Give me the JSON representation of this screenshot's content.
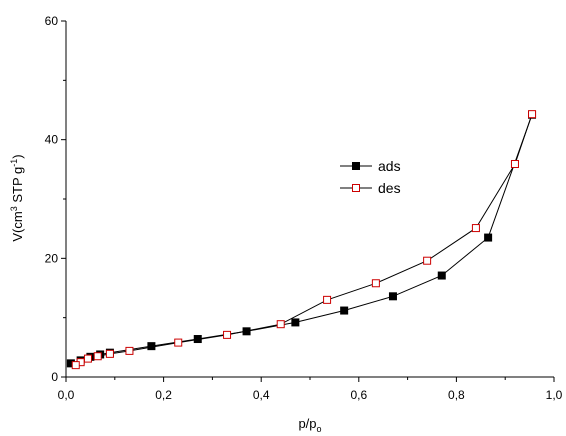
{
  "chart_data": {
    "type": "scatter",
    "xlabel": "p/p",
    "xlabel_sub": "o",
    "ylabel": {
      "prefix": "V(cm",
      "sup1": "3",
      "middle": " STP g",
      "sup2": "-1",
      "suffix": ")"
    },
    "xlim": [
      0,
      1.0
    ],
    "ylim": [
      0,
      60
    ],
    "x_ticks": [
      0.0,
      0.2,
      0.4,
      0.6,
      0.8,
      1.0
    ],
    "x_tick_labels": [
      "0,0",
      "0,2",
      "0,4",
      "0,6",
      "0,8",
      "1,0"
    ],
    "y_ticks": [
      0,
      20,
      40,
      60
    ],
    "y_tick_labels": [
      "0",
      "20",
      "40",
      "60"
    ],
    "grid": false,
    "legend_position": "center-right",
    "series": [
      {
        "name": "ads",
        "marker": "filled-square",
        "color": "#000000",
        "x": [
          0.01,
          0.03,
          0.05,
          0.07,
          0.09,
          0.175,
          0.27,
          0.37,
          0.47,
          0.57,
          0.67,
          0.77,
          0.865,
          0.955
        ],
        "y": [
          2.3,
          2.8,
          3.4,
          3.8,
          4.1,
          5.2,
          6.4,
          7.7,
          9.2,
          11.2,
          13.6,
          17.1,
          23.5,
          44.2
        ]
      },
      {
        "name": "des",
        "marker": "open-square",
        "color": "#cc0000",
        "x": [
          0.955,
          0.92,
          0.84,
          0.74,
          0.635,
          0.535,
          0.44,
          0.33,
          0.23,
          0.13,
          0.09,
          0.065,
          0.045,
          0.03,
          0.02
        ],
        "y": [
          44.3,
          35.9,
          25.1,
          19.6,
          15.8,
          13.0,
          8.9,
          7.1,
          5.8,
          4.4,
          3.9,
          3.5,
          3.1,
          2.5,
          2.0
        ]
      }
    ]
  }
}
